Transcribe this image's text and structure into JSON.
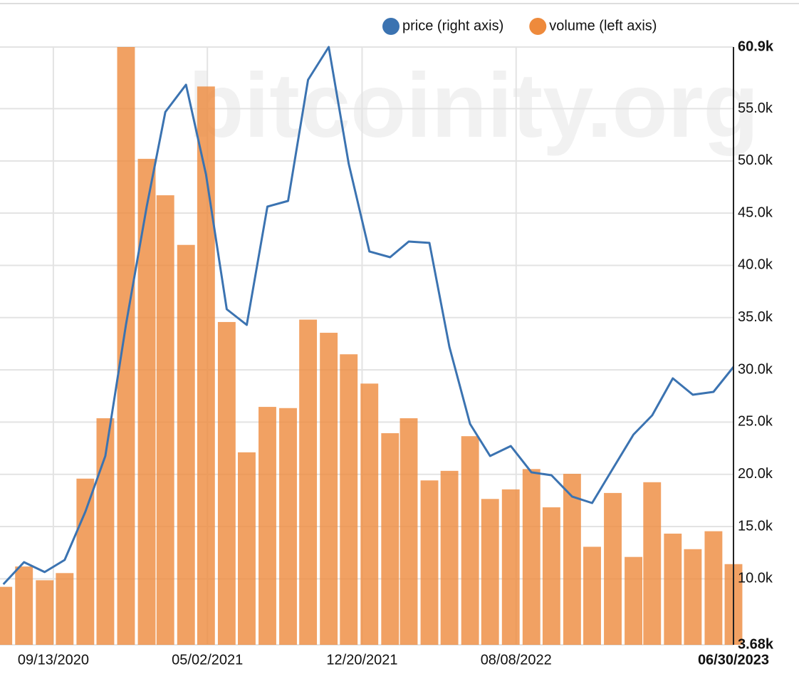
{
  "chart_data": {
    "type": "combo",
    "watermark": "bitcoinity.org",
    "legend": "top-right",
    "grid": true,
    "x": [
      "2020-06-30",
      "2020-07-31",
      "2020-08-31",
      "2020-09-30",
      "2020-10-31",
      "2020-11-30",
      "2020-12-31",
      "2021-01-31",
      "2021-02-28",
      "2021-03-31",
      "2021-04-30",
      "2021-05-31",
      "2021-06-30",
      "2021-07-31",
      "2021-08-31",
      "2021-09-30",
      "2021-10-31",
      "2021-11-30",
      "2021-12-31",
      "2022-01-31",
      "2022-02-28",
      "2022-03-31",
      "2022-04-30",
      "2022-05-31",
      "2022-06-30",
      "2022-07-31",
      "2022-08-31",
      "2022-09-30",
      "2022-10-31",
      "2022-11-30",
      "2022-12-31",
      "2023-01-31",
      "2023-02-28",
      "2023-03-31",
      "2023-04-30",
      "2023-05-31",
      "2023-06-30"
    ],
    "xlim": [
      "2020-06-25",
      "2023-06-30"
    ],
    "xticks": [
      {
        "value": "2020-09-13",
        "label": "09/13/2020"
      },
      {
        "value": "2021-05-02",
        "label": "05/02/2021"
      },
      {
        "value": "2021-12-20",
        "label": "12/20/2021"
      },
      {
        "value": "2022-08-08",
        "label": "08/08/2022"
      },
      {
        "value": "2023-06-30",
        "label": "06/30/2023"
      }
    ],
    "ylim": [
      0,
      100
    ],
    "y2lim": [
      3680,
      60900
    ],
    "y2ticks": [
      {
        "value": 3680,
        "label": "3.68k"
      },
      {
        "value": 10000,
        "label": "10.0k"
      },
      {
        "value": 15000,
        "label": "15.0k"
      },
      {
        "value": 20000,
        "label": "20.0k"
      },
      {
        "value": 25000,
        "label": "25.0k"
      },
      {
        "value": 30000,
        "label": "30.0k"
      },
      {
        "value": 35000,
        "label": "35.0k"
      },
      {
        "value": 40000,
        "label": "40.0k"
      },
      {
        "value": 45000,
        "label": "45.0k"
      },
      {
        "value": 50000,
        "label": "50.0k"
      },
      {
        "value": 55000,
        "label": "55.0k"
      },
      {
        "value": 60900,
        "label": "60.9k"
      }
    ],
    "series": [
      {
        "name": "price (right axis)",
        "type": "line",
        "axis": "y2",
        "color": "#3b73b1",
        "values": [
          9480,
          11590,
          10640,
          11800,
          16430,
          21750,
          34370,
          45620,
          54690,
          57290,
          48690,
          35800,
          34300,
          45620,
          46170,
          57760,
          60900,
          49720,
          41330,
          40780,
          42280,
          42150,
          32190,
          24820,
          21750,
          22710,
          20190,
          19910,
          17870,
          17250,
          20530,
          23800,
          25640,
          29190,
          27620,
          27890,
          30280
        ]
      },
      {
        "name": "volume (left axis)",
        "type": "bar",
        "axis": "y",
        "color": "#ee8a3c",
        "values": [
          9.7,
          13.1,
          10.8,
          12.0,
          27.8,
          37.9,
          100,
          81.3,
          75.2,
          66.9,
          93.4,
          54.0,
          32.2,
          39.8,
          39.6,
          54.4,
          52.2,
          48.6,
          43.7,
          35.4,
          37.9,
          27.5,
          29.1,
          34.9,
          24.4,
          26.0,
          29.4,
          23.0,
          28.6,
          16.4,
          25.4,
          14.7,
          27.2,
          18.6,
          16.0,
          19.0,
          13.5
        ]
      }
    ]
  }
}
